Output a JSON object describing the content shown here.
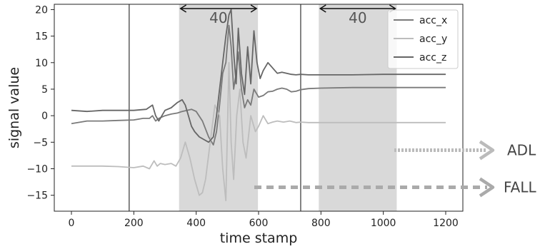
{
  "chart_data": {
    "type": "line",
    "xlabel": "time stamp",
    "ylabel": "signal value",
    "xlim": [
      -55,
      1255
    ],
    "ylim": [
      -18,
      21
    ],
    "xticks": [
      0,
      200,
      400,
      600,
      800,
      1000,
      1200
    ],
    "yticks": [
      -15,
      -10,
      -5,
      0,
      5,
      10,
      15,
      20
    ],
    "grid": false,
    "legend_position": "top-right",
    "vertical_lines": [
      185,
      735
    ],
    "shaded_windows": [
      {
        "x_start": 345,
        "x_end": 598,
        "label": "40"
      },
      {
        "x_start": 793,
        "x_end": 1043,
        "label": "40"
      }
    ],
    "annotations": [
      {
        "text": "ADL",
        "arrow_style": "dotted",
        "color": "#bbbbbb",
        "y": -6.5
      },
      {
        "text": "FALL",
        "arrow_style": "dashed",
        "color": "#aaaaaa",
        "y": -13.5
      }
    ],
    "series": [
      {
        "name": "acc_x",
        "color": "#7a7a7a",
        "x": [
          0,
          50,
          100,
          150,
          200,
          230,
          250,
          260,
          270,
          280,
          300,
          320,
          340,
          355,
          370,
          385,
          400,
          420,
          440,
          455,
          465,
          475,
          485,
          495,
          505,
          512,
          520,
          528,
          535,
          545,
          555,
          565,
          575,
          585,
          600,
          615,
          630,
          645,
          660,
          675,
          690,
          705,
          720,
          735,
          760,
          800,
          900,
          1000,
          1100,
          1200
        ],
        "y": [
          -1.5,
          -1.0,
          -1.0,
          -0.9,
          -0.8,
          -0.5,
          -0.5,
          0.0,
          -1.0,
          -0.5,
          0.0,
          0.3,
          0.5,
          0.8,
          1.0,
          1.2,
          0.8,
          -1.0,
          -4.0,
          -5.5,
          -3.0,
          2.0,
          8.0,
          10.0,
          17.0,
          13.0,
          5.0,
          8.0,
          12.0,
          5.0,
          1.5,
          3.0,
          2.0,
          5.0,
          3.5,
          3.8,
          4.5,
          4.6,
          5.0,
          5.2,
          5.0,
          4.5,
          4.6,
          4.9,
          5.1,
          5.2,
          5.3,
          5.3,
          5.3,
          5.3
        ]
      },
      {
        "name": "acc_y",
        "color": "#bdbdbd",
        "x": [
          0,
          50,
          100,
          150,
          200,
          230,
          250,
          265,
          275,
          285,
          300,
          320,
          335,
          350,
          365,
          380,
          395,
          410,
          420,
          430,
          445,
          460,
          475,
          485,
          495,
          505,
          512,
          520,
          530,
          540,
          550,
          560,
          575,
          590,
          600,
          615,
          630,
          645,
          660,
          680,
          700,
          720,
          735,
          760,
          800,
          900,
          1000,
          1100,
          1200
        ],
        "y": [
          -9.5,
          -9.5,
          -9.5,
          -9.6,
          -9.8,
          -9.5,
          -10.0,
          -8.5,
          -9.5,
          -9.0,
          -9.2,
          -9.0,
          -9.5,
          -8.0,
          -5.0,
          -8.0,
          -12.0,
          -15.0,
          -14.5,
          -12.0,
          -5.0,
          2.0,
          0.0,
          -10.0,
          -16.0,
          10.0,
          -5.0,
          -12.0,
          0.0,
          5.0,
          -5.0,
          -8.0,
          0.0,
          -3.0,
          -2.0,
          0.0,
          -1.5,
          -1.2,
          -1.0,
          -1.2,
          -1.0,
          -1.3,
          -1.2,
          -1.3,
          -1.3,
          -1.3,
          -1.3,
          -1.3,
          -1.3
        ]
      },
      {
        "name": "acc_z",
        "color": "#666666",
        "x": [
          0,
          50,
          100,
          150,
          200,
          240,
          260,
          270,
          280,
          300,
          320,
          340,
          355,
          365,
          375,
          385,
          395,
          410,
          425,
          440,
          455,
          465,
          475,
          485,
          495,
          505,
          512,
          520,
          528,
          535,
          545,
          555,
          565,
          575,
          585,
          595,
          605,
          615,
          630,
          645,
          660,
          675,
          690,
          705,
          720,
          735,
          760,
          800,
          900,
          1000,
          1100,
          1200
        ],
        "y": [
          1.0,
          0.8,
          1.0,
          1.0,
          1.0,
          1.2,
          2.0,
          0.0,
          -1.0,
          1.0,
          1.5,
          2.5,
          3.0,
          2.0,
          0.0,
          -2.0,
          -3.0,
          -4.0,
          -4.5,
          -5.0,
          -4.0,
          0.0,
          5.0,
          10.0,
          15.0,
          19.0,
          20.0,
          12.0,
          6.0,
          16.5,
          8.0,
          4.0,
          13.0,
          6.0,
          16.0,
          10.0,
          7.0,
          8.5,
          10.0,
          9.0,
          8.0,
          8.2,
          8.0,
          7.8,
          7.7,
          7.8,
          7.7,
          7.7,
          7.7,
          7.8,
          7.8,
          7.8
        ]
      }
    ]
  }
}
